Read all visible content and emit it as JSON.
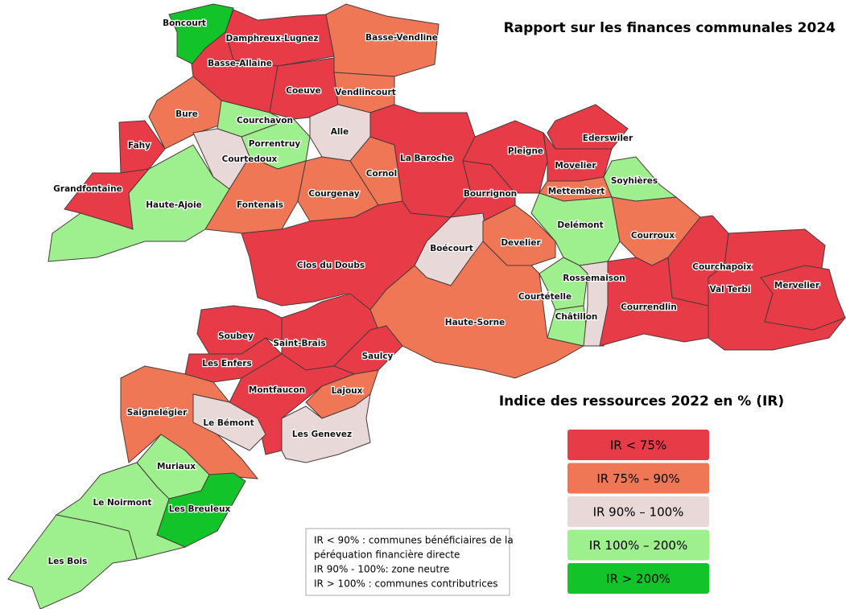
{
  "title": "Rapport sur les finances communales 2024",
  "legend": {
    "title": "Indice des ressources 2022 en % (IR)",
    "items": [
      {
        "label": "IR < 75%",
        "color": "#e83b48"
      },
      {
        "label": "IR 75% – 90%",
        "color": "#f07755"
      },
      {
        "label": "IR 90% – 100%",
        "color": "#e8d8d8"
      },
      {
        "label": "IR 100% – 200%",
        "color": "#9ef08f"
      },
      {
        "label": "IR > 200%",
        "color": "#12c42a"
      }
    ]
  },
  "note": [
    "IR < 90% : communes bénéficiaires de la",
    "péréquation financière directe",
    "IR 90% - 100%: zone neutre",
    "IR > 100% : communes contributrices"
  ],
  "communes": [
    {
      "name": "Boncourt",
      "group": "IR > 200%"
    },
    {
      "name": "Damphreux-Lugnez",
      "group": "IR < 75%"
    },
    {
      "name": "Basse-Allaine",
      "group": "IR < 75%"
    },
    {
      "name": "Basse-Vendline",
      "group": "IR 75% – 90%"
    },
    {
      "name": "Coeuve",
      "group": "IR < 75%"
    },
    {
      "name": "Vendlincourt",
      "group": "IR 75% – 90%"
    },
    {
      "name": "Bure",
      "group": "IR 75% – 90%"
    },
    {
      "name": "Courchavon",
      "group": "IR 100% – 200%"
    },
    {
      "name": "Porrentruy",
      "group": "IR 100% – 200%"
    },
    {
      "name": "Courtedoux",
      "group": "IR 90% – 100%"
    },
    {
      "name": "Fahy",
      "group": "IR < 75%"
    },
    {
      "name": "Grandfontaine",
      "group": "IR < 75%"
    },
    {
      "name": "Haute-Ajoie",
      "group": "IR 100% – 200%"
    },
    {
      "name": "Alle",
      "group": "IR 90% – 100%"
    },
    {
      "name": "Fontenais",
      "group": "IR 75% – 90%"
    },
    {
      "name": "Courgenay",
      "group": "IR 75% – 90%"
    },
    {
      "name": "Cornol",
      "group": "IR 75% – 90%"
    },
    {
      "name": "La Baroche",
      "group": "IR < 75%"
    },
    {
      "name": "Pleigne",
      "group": "IR < 75%"
    },
    {
      "name": "Bourrignon",
      "group": "IR < 75%"
    },
    {
      "name": "Ederswiler",
      "group": "IR < 75%"
    },
    {
      "name": "Movelier",
      "group": "IR < 75%"
    },
    {
      "name": "Mettembert",
      "group": "IR 75% – 90%"
    },
    {
      "name": "Soyhières",
      "group": "IR 100% – 200%"
    },
    {
      "name": "Delémont",
      "group": "IR 100% – 200%"
    },
    {
      "name": "Courroux",
      "group": "IR 75% – 90%"
    },
    {
      "name": "Boécourt",
      "group": "IR 90% – 100%"
    },
    {
      "name": "Develier",
      "group": "IR 75% – 90%"
    },
    {
      "name": "Clos du Doubs",
      "group": "IR < 75%"
    },
    {
      "name": "Haute-Sorne",
      "group": "IR 75% – 90%"
    },
    {
      "name": "Courtételle",
      "group": "IR 100% – 200%"
    },
    {
      "name": "Châtillon",
      "group": "IR 100% – 200%"
    },
    {
      "name": "Rossemaison",
      "group": "IR 90% – 100%"
    },
    {
      "name": "Courrendlin",
      "group": "IR < 75%"
    },
    {
      "name": "Courchapoix",
      "group": "IR < 75%"
    },
    {
      "name": "Val Terbi",
      "group": "IR < 75%"
    },
    {
      "name": "Mervelier",
      "group": "IR < 75%"
    },
    {
      "name": "Soubey",
      "group": "IR < 75%"
    },
    {
      "name": "Les Enfers",
      "group": "IR < 75%"
    },
    {
      "name": "Saint-Brais",
      "group": "IR < 75%"
    },
    {
      "name": "Saulcy",
      "group": "IR < 75%"
    },
    {
      "name": "Montfaucon",
      "group": "IR < 75%"
    },
    {
      "name": "Lajoux",
      "group": "IR 75% – 90%"
    },
    {
      "name": "Saignelégier",
      "group": "IR 75% – 90%"
    },
    {
      "name": "Le Bémont",
      "group": "IR 90% – 100%"
    },
    {
      "name": "Les Genevez",
      "group": "IR 90% – 100%"
    },
    {
      "name": "Muriaux",
      "group": "IR 100% – 200%"
    },
    {
      "name": "Les Breuleux",
      "group": "IR > 200%"
    },
    {
      "name": "Le Noirmont",
      "group": "IR 100% – 200%"
    },
    {
      "name": "Les Bois",
      "group": "IR 100% – 200%"
    }
  ]
}
